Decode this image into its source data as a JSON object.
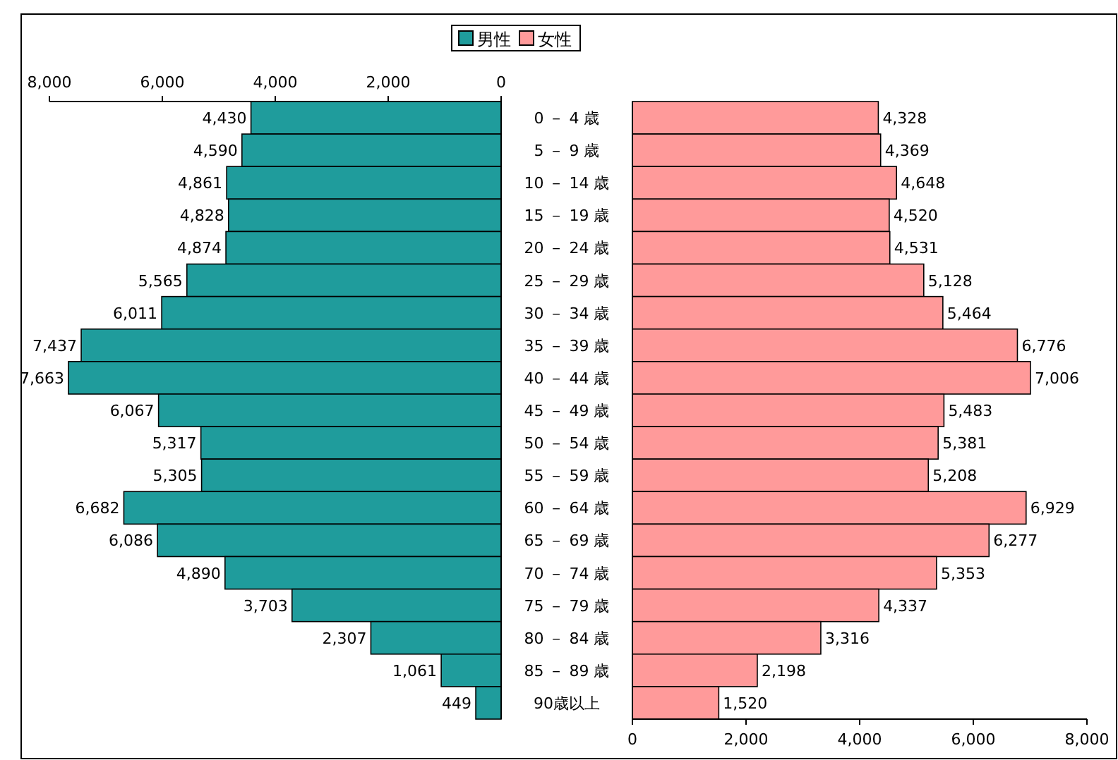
{
  "chart_data": [
    {
      "type": "bar",
      "orientation": "horizontal",
      "categories": [
        "0 －  4 歳",
        "5 －  9 歳",
        "10 － 14 歳",
        "15 － 19 歳",
        "20 － 24 歳",
        "25 － 29 歳",
        "30 － 34 歳",
        "35 － 39 歳",
        "40 － 44 歳",
        "45 － 49 歳",
        "50 － 54 歳",
        "55 － 59 歳",
        "60 － 64 歳",
        "65 － 69 歳",
        "70 － 74 歳",
        "75 － 79 歳",
        "80 － 84 歳",
        "85 － 89 歳",
        "90歳以上"
      ],
      "series": [
        {
          "name": "男性",
          "color": "#1f9c9c",
          "values": [
            4430,
            4590,
            4861,
            4828,
            4874,
            5565,
            6011,
            7437,
            7663,
            6067,
            5317,
            5305,
            6682,
            6086,
            4890,
            3703,
            2307,
            1061,
            449
          ],
          "value_labels": [
            "4,430",
            "4,590",
            "4,861",
            "4,828",
            "4,874",
            "5,565",
            "6,011",
            "7,437",
            "7,663",
            "6,067",
            "5,317",
            "5,305",
            "6,682",
            "6,086",
            "4,890",
            "3,703",
            "2,307",
            "1,061",
            "449"
          ]
        }
      ],
      "xlim": [
        8000,
        0
      ],
      "xticks": [
        {
          "value": 8000,
          "label": "8,000"
        },
        {
          "value": 6000,
          "label": "6,000"
        },
        {
          "value": 4000,
          "label": "4,000"
        },
        {
          "value": 2000,
          "label": "2,000"
        },
        0
      ],
      "legend": "top"
    },
    {
      "type": "bar",
      "orientation": "horizontal",
      "categories": [
        null,
        null,
        null,
        null,
        null,
        null,
        null,
        null,
        null,
        null,
        null,
        null,
        null,
        null,
        null,
        null,
        null,
        null,
        null
      ],
      "series": [
        {
          "name": "女性",
          "color": "#ff9a9a",
          "values": [
            4328,
            4369,
            4648,
            4520,
            4531,
            5128,
            5464,
            6776,
            7006,
            5483,
            5381,
            5208,
            6929,
            6277,
            5353,
            4337,
            3316,
            2198,
            1520
          ],
          "value_labels": [
            "4,328",
            "4,369",
            "4,648",
            "4,520",
            "4,531",
            "5,128",
            "5,464",
            "6,776",
            "7,006",
            "5,483",
            "5,381",
            "5,208",
            "6,929",
            "6,277",
            "5,353",
            "4,337",
            "3,316",
            "2,198",
            "1,520"
          ]
        }
      ],
      "xlim": [
        0,
        8000
      ],
      "xticks": [
        0,
        {
          "value": 2000,
          "label": "2,000"
        },
        {
          "value": 4000,
          "label": "4,000"
        },
        {
          "value": 6000,
          "label": "6,000"
        },
        {
          "value": 8000,
          "label": "8,000"
        }
      ],
      "legend": "top",
      "tick_labels": "x"
    }
  ]
}
